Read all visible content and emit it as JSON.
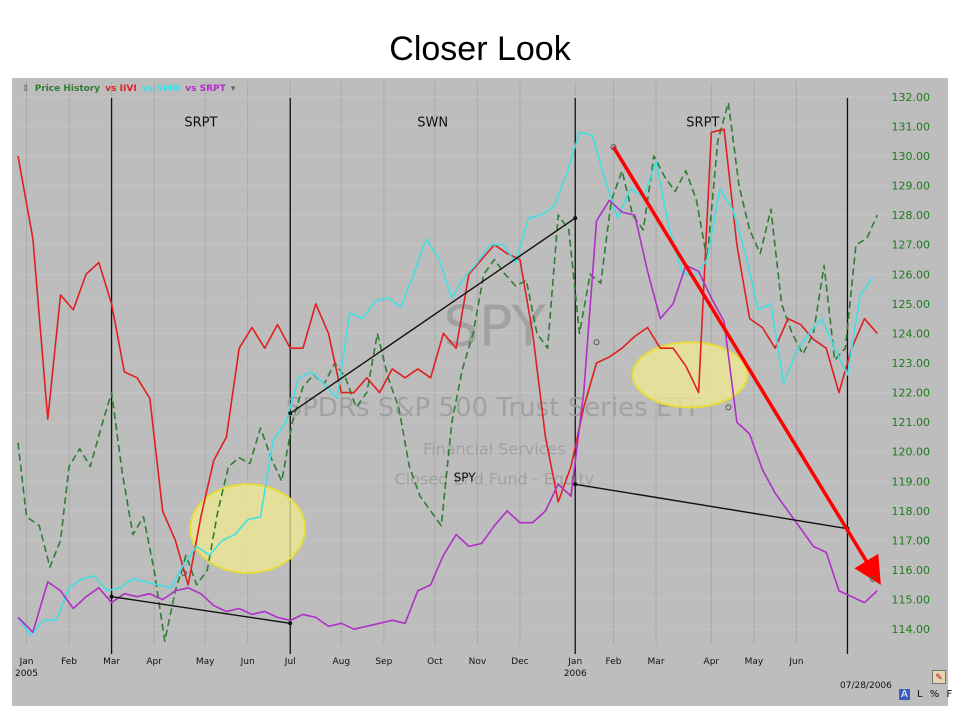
{
  "slide": {
    "title": "Closer Look"
  },
  "toolbar": {
    "legend": {
      "price_history": "Price History",
      "vs_iivi": "vs IIVI",
      "vs_swn": "vs SWN",
      "vs_srpt": "vs SRPT"
    },
    "date_stamp": "07/28/2006",
    "buttons": [
      "A",
      "L",
      "%",
      "F"
    ]
  },
  "colors": {
    "spy": "#2e7d32",
    "iivi": "#e02020",
    "swn": "#3fe0e6",
    "srpt": "#b02fc8",
    "trend_arrow": "#ff0000",
    "highlight": "#f2ec90",
    "highlight_border": "#e6dc3c",
    "legend_price": "#2e7d32"
  },
  "chart_data": {
    "type": "line",
    "title": "Closer Look",
    "x_unit": "month",
    "xlim": [
      0,
      20.5
    ],
    "ylim": [
      113.5,
      132.5
    ],
    "y_ticks": [
      "114.00",
      "115.00",
      "116.00",
      "117.00",
      "118.00",
      "119.00",
      "120.00",
      "121.00",
      "122.00",
      "123.00",
      "124.00",
      "125.00",
      "126.00",
      "127.00",
      "128.00",
      "129.00",
      "130.00",
      "131.00",
      "132.00"
    ],
    "x_ticks": [
      {
        "x": 0.2,
        "label": "Jan"
      },
      {
        "x": 1.2,
        "label": "Feb"
      },
      {
        "x": 2.2,
        "label": "Mar"
      },
      {
        "x": 3.2,
        "label": "Apr"
      },
      {
        "x": 4.4,
        "label": "May"
      },
      {
        "x": 5.4,
        "label": "Jun"
      },
      {
        "x": 6.4,
        "label": "Jul"
      },
      {
        "x": 7.6,
        "label": "Aug"
      },
      {
        "x": 8.6,
        "label": "Sep"
      },
      {
        "x": 9.8,
        "label": "Oct"
      },
      {
        "x": 10.8,
        "label": "Nov"
      },
      {
        "x": 11.8,
        "label": "Dec"
      },
      {
        "x": 13.1,
        "label": "Jan"
      },
      {
        "x": 14.0,
        "label": "Feb"
      },
      {
        "x": 15.0,
        "label": "Mar"
      },
      {
        "x": 16.3,
        "label": "Apr"
      },
      {
        "x": 17.3,
        "label": "May"
      },
      {
        "x": 18.3,
        "label": "Jun"
      }
    ],
    "year_labels": [
      {
        "x": 0.2,
        "label": "2005"
      },
      {
        "x": 13.1,
        "label": "2006"
      }
    ],
    "period_dividers": [
      2.2,
      6.4,
      13.1,
      19.5
    ],
    "period_labels": [
      {
        "x": 4.3,
        "y": 131.0,
        "label": "SRPT"
      },
      {
        "x": 9.75,
        "y": 131.0,
        "label": "SWN"
      },
      {
        "x": 16.1,
        "y": 131.0,
        "label": "SRPT"
      }
    ],
    "watermark": {
      "symbol": "SPY",
      "name": "SPDRs S&P 500 Trust Series ETF",
      "sector": "Financial Services",
      "type_line": "Closed End Fund - Equity",
      "inline_label": "SPY"
    },
    "series": [
      {
        "name": "SPY",
        "style": "dashed",
        "x": [
          0,
          0.2,
          0.5,
          0.75,
          1.0,
          1.2,
          1.45,
          1.7,
          1.95,
          2.2,
          2.45,
          2.7,
          2.95,
          3.2,
          3.45,
          3.7,
          3.95,
          4.2,
          4.45,
          4.7,
          4.95,
          5.2,
          5.45,
          5.7,
          5.95,
          6.2,
          6.45,
          6.7,
          6.95,
          7.2,
          7.45,
          7.7,
          7.95,
          8.2,
          8.45,
          8.7,
          8.95,
          9.2,
          9.45,
          9.7,
          9.95,
          10.2,
          10.45,
          10.7,
          10.95,
          11.2,
          11.45,
          11.7,
          11.95,
          12.2,
          12.45,
          12.7,
          12.95,
          13.2,
          13.45,
          13.7,
          13.95,
          14.2,
          14.45,
          14.7,
          14.95,
          15.2,
          15.45,
          15.7,
          15.95,
          16.2,
          16.45,
          16.7,
          16.95,
          17.2,
          17.45,
          17.7,
          17.95,
          18.2,
          18.45,
          18.7,
          18.95,
          19.2,
          19.45,
          19.7,
          19.95,
          20.2
        ],
        "values": [
          120.3,
          117.8,
          117.5,
          116.1,
          117.0,
          119.5,
          120.1,
          119.5,
          120.8,
          122.0,
          119.3,
          117.2,
          117.8,
          116.0,
          113.6,
          115.3,
          116.5,
          115.5,
          116.0,
          118.0,
          119.5,
          119.8,
          119.6,
          120.8,
          119.8,
          119.0,
          121.0,
          122.2,
          122.6,
          122.3,
          123.0,
          122.5,
          121.5,
          122.0,
          124.0,
          122.5,
          121.5,
          119.5,
          118.5,
          118.0,
          117.5,
          121.0,
          122.8,
          124.0,
          126.0,
          126.5,
          126.0,
          125.6,
          125.8,
          124.0,
          123.5,
          128.0,
          127.5,
          124.0,
          126.0,
          125.7,
          128.5,
          129.5,
          128.0,
          127.5,
          130.0,
          129.3,
          128.8,
          129.5,
          128.5,
          126.5,
          130.5,
          131.8,
          129.0,
          127.5,
          126.7,
          128.2,
          125.0,
          124.0,
          123.3,
          124.0,
          126.3,
          123.1,
          123.5,
          127.0,
          127.2,
          128.0
        ],
        "x_override": true
      },
      {
        "name": "IIVI",
        "style": "solid",
        "x": [
          0,
          0.35,
          0.7,
          1.0,
          1.3,
          1.6,
          1.9,
          2.2,
          2.5,
          2.8,
          3.1,
          3.4,
          3.7,
          4.0,
          4.3,
          4.6,
          4.9,
          5.2,
          5.5,
          5.8,
          6.1,
          6.4,
          6.7,
          7.0,
          7.3,
          7.6,
          7.9,
          8.2,
          8.5,
          8.8,
          9.1,
          9.4,
          9.7,
          10.0,
          10.3,
          10.6,
          10.9,
          11.2,
          11.5,
          11.8,
          12.1,
          12.4,
          12.7,
          13.0,
          13.3,
          13.6,
          13.9,
          14.2,
          14.5,
          14.8,
          15.1,
          15.4,
          15.7,
          16.0,
          16.3,
          16.6,
          16.9,
          17.2,
          17.5,
          17.8,
          18.1,
          18.4,
          18.7,
          19.0,
          19.3,
          19.6,
          19.9,
          20.2
        ],
        "values": [
          130.0,
          127.2,
          121.1,
          125.3,
          124.8,
          126.0,
          126.4,
          125.0,
          122.7,
          122.5,
          121.8,
          118.0,
          117.0,
          115.5,
          117.8,
          119.7,
          120.5,
          123.5,
          124.2,
          123.5,
          124.3,
          123.5,
          123.5,
          125.0,
          124.0,
          122.0,
          122.0,
          122.5,
          122.0,
          122.8,
          122.5,
          122.8,
          122.5,
          124.0,
          123.5,
          126.0,
          126.5,
          127.0,
          126.7,
          126.5,
          124.0,
          120.5,
          118.3,
          119.5,
          121.5,
          123.0,
          123.2,
          123.5,
          123.9,
          124.2,
          123.5,
          123.5,
          122.9,
          122.0,
          130.8,
          130.9,
          127.0,
          124.5,
          124.2,
          123.5,
          124.5,
          124.3,
          123.8,
          123.5,
          122.0,
          123.5,
          124.5,
          124.0
        ],
        "x_override": true
      },
      {
        "name": "SWN",
        "style": "solid",
        "x": [
          0,
          0.3,
          0.6,
          0.9,
          1.2,
          1.5,
          1.8,
          2.1,
          2.4,
          2.7,
          3.0,
          3.3,
          3.6,
          3.9,
          4.2,
          4.5,
          4.8,
          5.1,
          5.4,
          5.7,
          6.0,
          6.3,
          6.6,
          6.9,
          7.2,
          7.5,
          7.8,
          8.1,
          8.4,
          8.7,
          9.0,
          9.3,
          9.6,
          9.9,
          10.2,
          10.5,
          10.8,
          11.1,
          11.4,
          11.7,
          12.0,
          12.3,
          12.6,
          12.9,
          13.2,
          13.5,
          13.8,
          14.1,
          14.4,
          14.7,
          15.0,
          15.3,
          15.6,
          15.9,
          16.2,
          16.5,
          16.8,
          17.1,
          17.4,
          17.7,
          18.0,
          18.3,
          18.6,
          18.9,
          19.2,
          19.5,
          19.8,
          20.1
        ],
        "values": [
          114.4,
          113.8,
          114.3,
          114.3,
          115.4,
          115.7,
          115.8,
          115.3,
          115.4,
          115.7,
          115.6,
          115.5,
          115.4,
          116.2,
          116.8,
          116.5,
          117.0,
          117.2,
          117.7,
          117.8,
          120.4,
          121.0,
          122.5,
          122.7,
          122.3,
          121.8,
          124.7,
          124.5,
          125.1,
          125.2,
          124.9,
          126.0,
          127.2,
          126.5,
          125.2,
          125.9,
          126.4,
          127.0,
          127.0,
          126.4,
          127.9,
          128.0,
          128.3,
          129.4,
          130.8,
          130.7,
          129.2,
          127.9,
          128.9,
          128.6,
          129.8,
          127.6,
          126.1,
          125.9,
          126.5,
          128.9,
          128.2,
          126.7,
          124.8,
          125.0,
          122.3,
          123.4,
          124.0,
          124.5,
          123.5,
          122.6,
          125.3,
          125.9
        ],
        "x_override": true
      },
      {
        "name": "SRPT",
        "style": "solid",
        "x": [
          0,
          0.35,
          0.7,
          1.0,
          1.3,
          1.6,
          1.9,
          2.2,
          2.5,
          2.8,
          3.1,
          3.4,
          3.7,
          4.0,
          4.3,
          4.6,
          4.9,
          5.2,
          5.5,
          5.8,
          6.1,
          6.4,
          6.7,
          7.0,
          7.3,
          7.6,
          7.9,
          8.2,
          8.5,
          8.8,
          9.1,
          9.4,
          9.7,
          10.0,
          10.3,
          10.6,
          10.9,
          11.2,
          11.5,
          11.8,
          12.1,
          12.4,
          12.7,
          13.0,
          13.3,
          13.6,
          13.9,
          14.2,
          14.5,
          14.8,
          15.1,
          15.4,
          15.7,
          16.0,
          16.3,
          16.6,
          16.9,
          17.2,
          17.5,
          17.8,
          18.1,
          18.4,
          18.7,
          19.0,
          19.3,
          19.6,
          19.9,
          20.2
        ],
        "values": [
          114.4,
          113.9,
          115.6,
          115.3,
          114.7,
          115.1,
          115.4,
          114.9,
          115.2,
          115.1,
          115.2,
          115.0,
          115.3,
          115.4,
          115.2,
          114.8,
          114.6,
          114.7,
          114.5,
          114.6,
          114.4,
          114.3,
          114.5,
          114.4,
          114.1,
          114.2,
          114.0,
          114.1,
          114.2,
          114.3,
          114.2,
          115.3,
          115.5,
          116.5,
          117.2,
          116.8,
          116.9,
          117.5,
          118.0,
          117.6,
          117.6,
          118.0,
          118.9,
          118.5,
          122.0,
          127.8,
          128.5,
          128.1,
          128.0,
          126.1,
          124.5,
          125.0,
          126.3,
          126.1,
          125.2,
          124.4,
          121.0,
          120.6,
          119.4,
          118.6,
          118.0,
          117.4,
          116.8,
          116.6,
          115.3,
          115.1,
          114.9,
          115.3
        ],
        "x_override": true
      }
    ],
    "annotations": {
      "ellipses": [
        {
          "cx": 5.4,
          "cy": 117.4,
          "rx": 1.35,
          "ry": 1.5
        },
        {
          "cx": 15.8,
          "cy": 122.6,
          "rx": 1.35,
          "ry": 1.1
        }
      ],
      "trend_lines": [
        {
          "from": [
            2.2,
            115.1
          ],
          "to": [
            6.4,
            114.2
          ]
        },
        {
          "from": [
            6.4,
            121.3
          ],
          "to": [
            13.1,
            127.9
          ]
        },
        {
          "from": [
            13.1,
            118.9
          ],
          "to": [
            19.5,
            117.4
          ]
        }
      ],
      "red_arrow": {
        "from": [
          14.0,
          130.3
        ],
        "to": [
          20.2,
          115.7
        ]
      },
      "markers": [
        {
          "x": 3.9,
          "y": 115.9
        },
        {
          "x": 13.6,
          "y": 123.7
        },
        {
          "x": 14.0,
          "y": 130.3
        },
        {
          "x": 16.7,
          "y": 121.5
        },
        {
          "x": 20.1,
          "y": 115.7
        }
      ]
    }
  }
}
